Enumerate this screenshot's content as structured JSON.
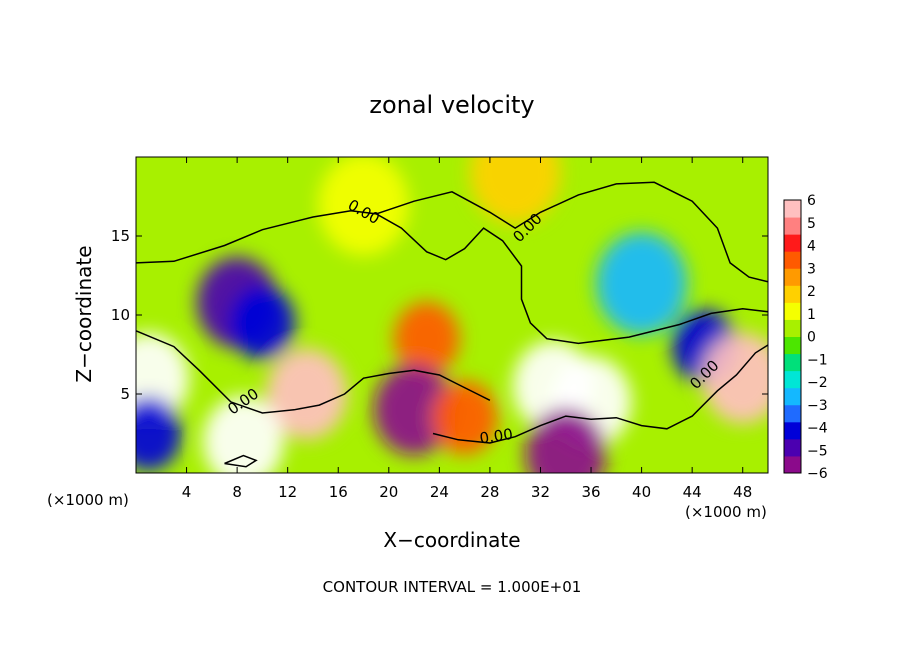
{
  "chart_data": {
    "type": "heatmap",
    "title": "zonal velocity",
    "xlabel": "X−coordinate",
    "ylabel": "Z−coordinate",
    "x_unit_left": "(×1000 m)",
    "x_unit_right": "(×1000 m)",
    "footer": "CONTOUR INTERVAL = 1.000E+01",
    "xlim": [
      0,
      50
    ],
    "ylim": [
      0,
      20
    ],
    "xticks": [
      4,
      8,
      12,
      16,
      20,
      24,
      28,
      32,
      36,
      40,
      44,
      48
    ],
    "yticks": [
      5,
      10,
      15
    ],
    "colorbar": {
      "ticks": [
        6,
        5,
        4,
        3,
        2,
        1,
        0,
        -1,
        -2,
        -3,
        -4,
        -5,
        -6
      ],
      "labels": [
        "6",
        "5",
        "4",
        "3",
        "2",
        "1",
        "0",
        "−1",
        "−2",
        "−3",
        "−4",
        "−5",
        "−6"
      ],
      "range": [
        -6,
        6
      ],
      "colors": [
        "#8b0a8b",
        "#4b00b0",
        "#0000d8",
        "#1f6bff",
        "#14b8ff",
        "#00e6d6",
        "#00e07a",
        "#4ce600",
        "#a8f000",
        "#f5ff00",
        "#ffd000",
        "#ff9a00",
        "#ff5a00",
        "#ff1a1a",
        "#ff8080",
        "#ffc0c0"
      ]
    },
    "contour_labels": [
      "0.00",
      "0.00",
      "0.00",
      "0.00",
      "0.00"
    ],
    "field_features": [
      {
        "x": 8,
        "y": 10.8,
        "value": -5
      },
      {
        "x": 10,
        "y": 9.5,
        "value": -4.5
      },
      {
        "x": 40,
        "y": 12,
        "value": -2.5
      },
      {
        "x": 45,
        "y": 8,
        "value": -4
      },
      {
        "x": 23,
        "y": 8.5,
        "value": 3.5
      },
      {
        "x": 33,
        "y": 5.5,
        "value": 7
      },
      {
        "x": 36,
        "y": 4.5,
        "value": 7
      },
      {
        "x": 1,
        "y": 6,
        "value": 7
      },
      {
        "x": 48,
        "y": 6,
        "value": 6
      },
      {
        "x": 13.5,
        "y": 5,
        "value": 5.5
      },
      {
        "x": 8.5,
        "y": 2,
        "value": 7
      },
      {
        "x": 22,
        "y": 4,
        "value": -6
      },
      {
        "x": 34,
        "y": 1.2,
        "value": -6
      },
      {
        "x": 1,
        "y": 2.5,
        "value": -4
      },
      {
        "x": 26,
        "y": 3.5,
        "value": 3
      },
      {
        "x": 18,
        "y": 17,
        "value": 1
      },
      {
        "x": 30,
        "y": 19,
        "value": 1.5
      }
    ]
  }
}
